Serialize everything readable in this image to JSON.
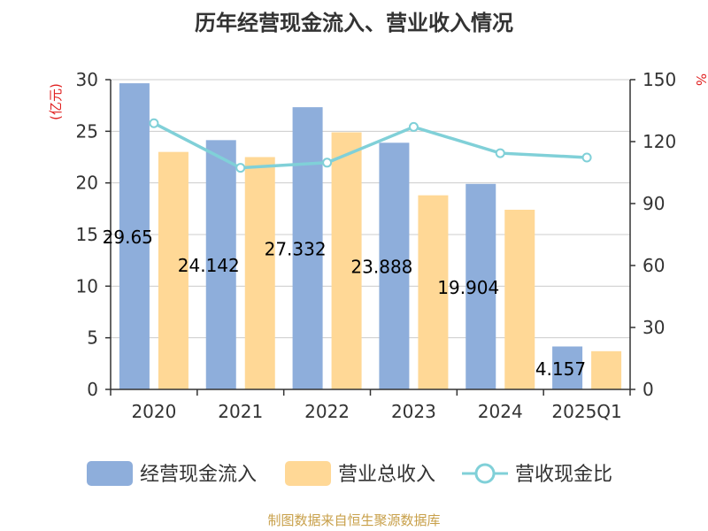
{
  "title": "历年经营现金流入、营业收入情况",
  "footer": "制图数据来自恒生聚源数据库",
  "colors": {
    "cash_inflow": "#8eaedb",
    "revenue": "#ffd896",
    "ratio": "#80d0d8",
    "unit_red": "#e02020"
  },
  "chart_data": {
    "type": "bar",
    "categories": [
      "2020",
      "2021",
      "2022",
      "2023",
      "2024",
      "2025Q1"
    ],
    "left_axis_unit": "(亿元)",
    "right_axis_unit": "%",
    "ylim_left": [
      0,
      30
    ],
    "yticks_left": [
      "0",
      "5",
      "10",
      "15",
      "20",
      "25",
      "30"
    ],
    "ylim_right": [
      0,
      150
    ],
    "yticks_right": [
      "0",
      "30",
      "60",
      "90",
      "120",
      "150"
    ],
    "grid": true,
    "legend_position": "bottom",
    "series": [
      {
        "name": "经营现金流入",
        "axis": "left",
        "type": "bar",
        "values": [
          29.65,
          24.142,
          27.332,
          23.888,
          19.904,
          4.157
        ],
        "labels": [
          "29.65",
          "24.142",
          "27.332",
          "23.888",
          "19.904",
          "4.157"
        ]
      },
      {
        "name": "营业总收入",
        "axis": "left",
        "type": "bar",
        "values": [
          23.0,
          22.5,
          24.9,
          18.8,
          17.4,
          3.7
        ]
      },
      {
        "name": "营收现金比",
        "axis": "right",
        "type": "line",
        "values": [
          128.9,
          107.3,
          109.8,
          127.1,
          114.4,
          112.3
        ]
      }
    ]
  }
}
